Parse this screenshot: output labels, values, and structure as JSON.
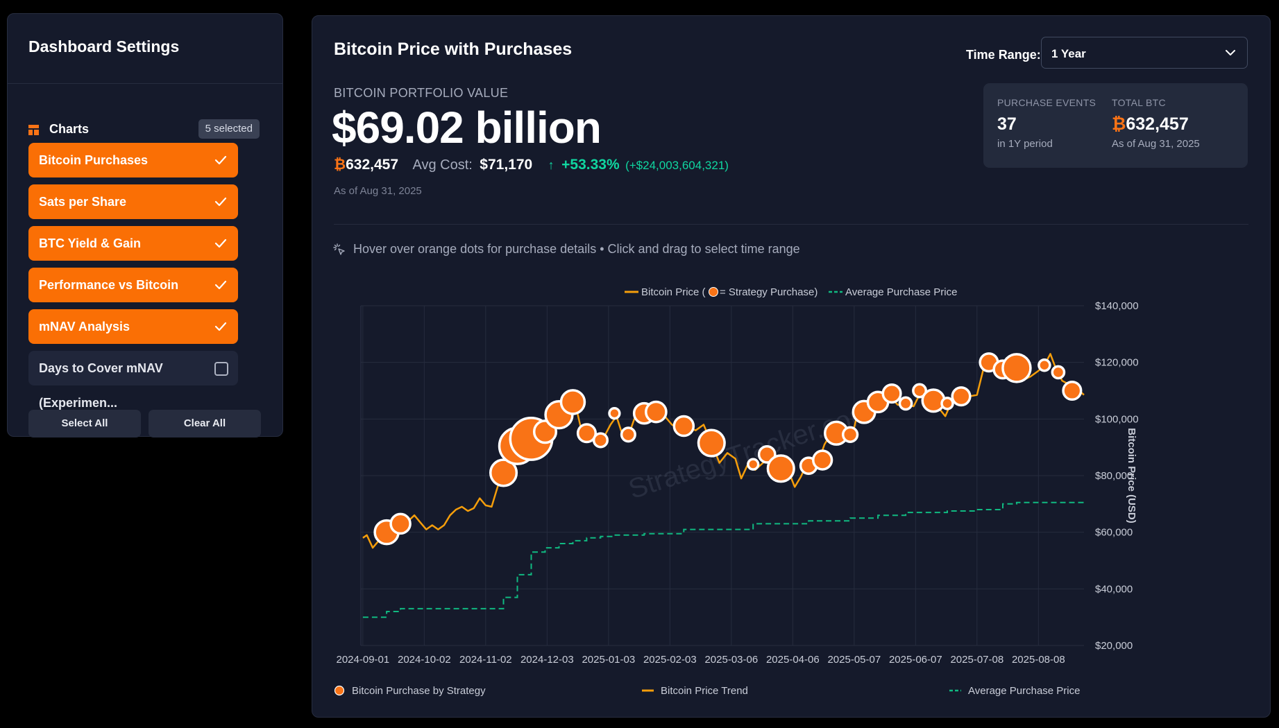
{
  "sidebar": {
    "title": "Dashboard Settings",
    "charts_label": "Charts",
    "selected_badge": "5 selected",
    "options": [
      {
        "label": "Bitcoin Purchases",
        "checked": true
      },
      {
        "label": "Sats per Share",
        "checked": true
      },
      {
        "label": "BTC Yield & Gain",
        "checked": true
      },
      {
        "label": "Performance vs Bitcoin",
        "checked": true
      },
      {
        "label": "mNAV Analysis",
        "checked": true
      },
      {
        "label": "Days to Cover mNAV (Experimen...",
        "checked": false
      }
    ],
    "select_all": "Select All",
    "clear_all": "Clear All"
  },
  "main": {
    "title": "Bitcoin Price with Purchases",
    "time_range_label": "Time Range:",
    "time_range_value": "1 Year",
    "portfolio_label": "BITCOIN PORTFOLIO VALUE",
    "portfolio_value": "$69.02 billion",
    "btc_symbol": "₿",
    "btc_holdings": "632,457",
    "avg_cost_label": "Avg Cost:",
    "avg_cost_value": "$71,170",
    "gain_arrow": "↑",
    "gain_pct": "+53.33%",
    "gain_abs": "(+$24,003,604,321)",
    "as_of": "As of Aug 31, 2025",
    "stats": {
      "events_label": "PURCHASE EVENTS",
      "events_value": "37",
      "events_sub": "in 1Y period",
      "total_label": "TOTAL BTC",
      "total_value": "632,457",
      "total_sub": "As of Aug 31, 2025"
    },
    "hint": "Hover over orange dots for purchase details • Click and drag to select time range"
  },
  "colors": {
    "accent": "#f97316",
    "price_line": "#f59e0b",
    "avg_line": "#10b981",
    "gain": "#10d6a0"
  },
  "chart_data": {
    "type": "line",
    "legend_top": {
      "price": "Bitcoin Price (",
      "price_suffix": " = Strategy Purchase)",
      "avg": "Average Purchase Price"
    },
    "legend_bottom": [
      "Bitcoin Purchase by Strategy",
      "Bitcoin Price Trend",
      "Average Purchase Price"
    ],
    "ylabel": "Bitcoin Price (USD)",
    "ylim": [
      20000,
      140000
    ],
    "y_ticks": [
      "$20,000",
      "$40,000",
      "$60,000",
      "$80,000",
      "$100,000",
      "$120,000",
      "$140,000"
    ],
    "x_ticks": [
      "2024-09-01",
      "2024-10-02",
      "2024-11-02",
      "2024-12-03",
      "2025-01-03",
      "2025-02-03",
      "2025-03-06",
      "2025-04-06",
      "2025-05-07",
      "2025-06-07",
      "2025-07-08",
      "2025-08-08"
    ],
    "watermark": "StrategyTracker.com",
    "series": [
      {
        "name": "Bitcoin Price",
        "points": [
          [
            "2024-09-01",
            58000
          ],
          [
            "2024-09-03",
            59000
          ],
          [
            "2024-09-06",
            54500
          ],
          [
            "2024-09-09",
            57000
          ],
          [
            "2024-09-12",
            58000
          ],
          [
            "2024-09-15",
            60000
          ],
          [
            "2024-09-18",
            61000
          ],
          [
            "2024-09-21",
            63000
          ],
          [
            "2024-09-24",
            64000
          ],
          [
            "2024-09-27",
            66000
          ],
          [
            "2024-09-30",
            63500
          ],
          [
            "2024-10-03",
            61000
          ],
          [
            "2024-10-06",
            62500
          ],
          [
            "2024-10-09",
            61000
          ],
          [
            "2024-10-12",
            62500
          ],
          [
            "2024-10-15",
            66000
          ],
          [
            "2024-10-18",
            68000
          ],
          [
            "2024-10-21",
            69000
          ],
          [
            "2024-10-24",
            67500
          ],
          [
            "2024-10-27",
            68500
          ],
          [
            "2024-10-30",
            72000
          ],
          [
            "2024-11-02",
            69500
          ],
          [
            "2024-11-05",
            69000
          ],
          [
            "2024-11-08",
            76000
          ],
          [
            "2024-11-11",
            81000
          ],
          [
            "2024-11-14",
            88000
          ],
          [
            "2024-11-17",
            90000
          ],
          [
            "2024-11-20",
            92000
          ],
          [
            "2024-11-23",
            98000
          ],
          [
            "2024-11-26",
            93000
          ],
          [
            "2024-11-29",
            96000
          ],
          [
            "2024-12-02",
            95500
          ],
          [
            "2024-12-05",
            98000
          ],
          [
            "2024-12-08",
            100000
          ],
          [
            "2024-12-11",
            101000
          ],
          [
            "2024-12-14",
            102000
          ],
          [
            "2024-12-17",
            106000
          ],
          [
            "2024-12-20",
            97000
          ],
          [
            "2024-12-23",
            94500
          ],
          [
            "2024-12-26",
            96000
          ],
          [
            "2024-12-29",
            93500
          ],
          [
            "2025-01-01",
            94000
          ],
          [
            "2025-01-04",
            98000
          ],
          [
            "2025-01-07",
            101000
          ],
          [
            "2025-01-10",
            94500
          ],
          [
            "2025-01-13",
            94000
          ],
          [
            "2025-01-16",
            100000
          ],
          [
            "2025-01-20",
            103000
          ],
          [
            "2025-01-24",
            105000
          ],
          [
            "2025-01-28",
            102000
          ],
          [
            "2025-02-01",
            100500
          ],
          [
            "2025-02-04",
            98000
          ],
          [
            "2025-02-08",
            96500
          ],
          [
            "2025-02-12",
            97000
          ],
          [
            "2025-02-16",
            96000
          ],
          [
            "2025-02-20",
            98000
          ],
          [
            "2025-02-24",
            91500
          ],
          [
            "2025-02-28",
            84500
          ],
          [
            "2025-03-04",
            88000
          ],
          [
            "2025-03-08",
            86000
          ],
          [
            "2025-03-11",
            79000
          ],
          [
            "2025-03-14",
            83500
          ],
          [
            "2025-03-18",
            82000
          ],
          [
            "2025-03-22",
            84500
          ],
          [
            "2025-03-26",
            87000
          ],
          [
            "2025-03-30",
            82000
          ],
          [
            "2025-04-03",
            83000
          ],
          [
            "2025-04-07",
            76000
          ],
          [
            "2025-04-10",
            79500
          ],
          [
            "2025-04-13",
            84000
          ],
          [
            "2025-04-16",
            84500
          ],
          [
            "2025-04-19",
            85000
          ],
          [
            "2025-04-22",
            91000
          ],
          [
            "2025-04-25",
            94500
          ],
          [
            "2025-04-28",
            95000
          ],
          [
            "2025-05-02",
            96000
          ],
          [
            "2025-05-06",
            94000
          ],
          [
            "2025-05-09",
            103000
          ],
          [
            "2025-05-13",
            104000
          ],
          [
            "2025-05-17",
            103000
          ],
          [
            "2025-05-21",
            109000
          ],
          [
            "2025-05-25",
            108000
          ],
          [
            "2025-05-29",
            105000
          ],
          [
            "2025-06-02",
            105000
          ],
          [
            "2025-06-06",
            104500
          ],
          [
            "2025-06-10",
            110000
          ],
          [
            "2025-06-14",
            105000
          ],
          [
            "2025-06-18",
            104500
          ],
          [
            "2025-06-22",
            101000
          ],
          [
            "2025-06-26",
            107500
          ],
          [
            "2025-06-30",
            107000
          ],
          [
            "2025-07-04",
            108000
          ],
          [
            "2025-07-08",
            108500
          ],
          [
            "2025-07-11",
            117000
          ],
          [
            "2025-07-14",
            120000
          ],
          [
            "2025-07-17",
            119000
          ],
          [
            "2025-07-20",
            117500
          ],
          [
            "2025-07-24",
            118000
          ],
          [
            "2025-07-28",
            119000
          ],
          [
            "2025-08-01",
            114000
          ],
          [
            "2025-08-04",
            115000
          ],
          [
            "2025-08-08",
            117000
          ],
          [
            "2025-08-11",
            119000
          ],
          [
            "2025-08-14",
            123000
          ],
          [
            "2025-08-17",
            117500
          ],
          [
            "2025-08-20",
            113500
          ],
          [
            "2025-08-24",
            112000
          ],
          [
            "2025-08-27",
            111000
          ],
          [
            "2025-08-31",
            108500
          ]
        ]
      },
      {
        "name": "Average Purchase Price",
        "steps": [
          [
            "2024-09-01",
            30000
          ],
          [
            "2024-09-13",
            32000
          ],
          [
            "2024-09-20",
            33000
          ],
          [
            "2024-11-11",
            37000
          ],
          [
            "2024-11-18",
            45000
          ],
          [
            "2024-11-25",
            53000
          ],
          [
            "2024-12-02",
            54500
          ],
          [
            "2024-12-09",
            56000
          ],
          [
            "2024-12-16",
            57000
          ],
          [
            "2024-12-23",
            58000
          ],
          [
            "2024-12-30",
            58500
          ],
          [
            "2025-01-06",
            59000
          ],
          [
            "2025-01-21",
            59500
          ],
          [
            "2025-02-10",
            61000
          ],
          [
            "2025-03-17",
            63000
          ],
          [
            "2025-04-14",
            64000
          ],
          [
            "2025-05-05",
            65000
          ],
          [
            "2025-05-19",
            66000
          ],
          [
            "2025-06-02",
            67000
          ],
          [
            "2025-06-23",
            67500
          ],
          [
            "2025-07-07",
            68000
          ],
          [
            "2025-07-21",
            70000
          ],
          [
            "2025-07-28",
            70500
          ],
          [
            "2025-08-31",
            71170
          ]
        ]
      },
      {
        "name": "Bitcoin Purchase by Strategy",
        "purchases": [
          [
            "2024-09-13",
            60000,
            2
          ],
          [
            "2024-09-20",
            63000,
            1.5
          ],
          [
            "2024-11-11",
            81000,
            2.3
          ],
          [
            "2024-11-18",
            90500,
            3.5
          ],
          [
            "2024-11-25",
            93000,
            4.2
          ],
          [
            "2024-12-02",
            95500,
            1.8
          ],
          [
            "2024-12-09",
            101500,
            2.4
          ],
          [
            "2024-12-16",
            106000,
            2.0
          ],
          [
            "2024-12-23",
            95000,
            1.3
          ],
          [
            "2024-12-30",
            92500,
            0.8
          ],
          [
            "2025-01-06",
            102000,
            0.4
          ],
          [
            "2025-01-13",
            94500,
            0.8
          ],
          [
            "2025-01-21",
            102000,
            1.6
          ],
          [
            "2025-01-27",
            102500,
            1.6
          ],
          [
            "2025-02-10",
            97500,
            1.5
          ],
          [
            "2025-02-24",
            91500,
            2.3
          ],
          [
            "2025-03-17",
            84000,
            0.4
          ],
          [
            "2025-03-24",
            87500,
            1.1
          ],
          [
            "2025-03-31",
            82500,
            2.3
          ],
          [
            "2025-04-14",
            83500,
            1.1
          ],
          [
            "2025-04-21",
            85500,
            1.4
          ],
          [
            "2025-04-28",
            95000,
            1.9
          ],
          [
            "2025-05-05",
            94500,
            0.9
          ],
          [
            "2025-05-12",
            102500,
            1.8
          ],
          [
            "2025-05-19",
            106000,
            1.6
          ],
          [
            "2025-05-26",
            109000,
            1.3
          ],
          [
            "2025-06-02",
            105500,
            0.6
          ],
          [
            "2025-06-09",
            110000,
            0.7
          ],
          [
            "2025-06-16",
            106500,
            1.8
          ],
          [
            "2025-06-23",
            105500,
            0.5
          ],
          [
            "2025-06-30",
            108000,
            1.3
          ],
          [
            "2025-07-14",
            120000,
            1.3
          ],
          [
            "2025-07-21",
            117500,
            1.3
          ],
          [
            "2025-07-28",
            118000,
            2.5
          ],
          [
            "2025-08-11",
            119000,
            0.5
          ],
          [
            "2025-08-18",
            116500,
            0.6
          ],
          [
            "2025-08-25",
            110000,
            1.3
          ]
        ]
      }
    ]
  }
}
